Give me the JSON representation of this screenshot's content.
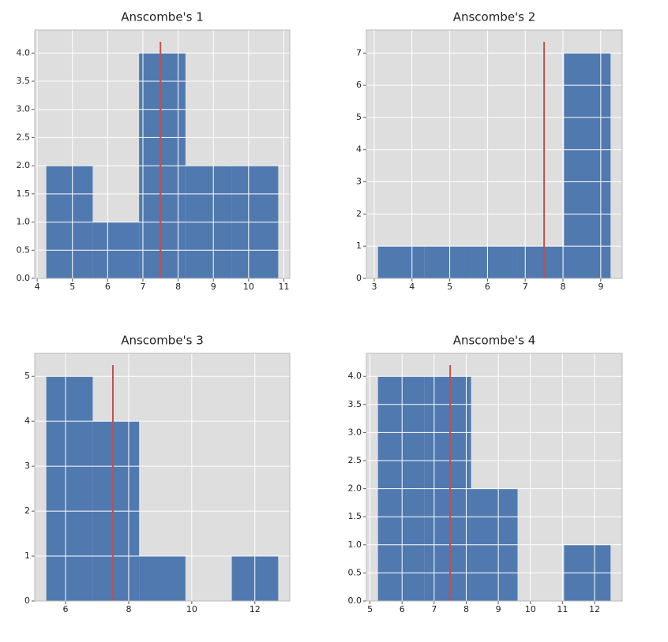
{
  "chart_data": [
    {
      "type": "histogram",
      "title": "Anscombe's 1",
      "bins": [
        4.26,
        5.576,
        6.892,
        8.208,
        9.524,
        10.84
      ],
      "values": [
        2,
        1,
        4,
        2,
        2
      ],
      "color": "#5079b0",
      "vline": {
        "x": 7.5,
        "ymax": 4.2,
        "color": "#c0504d"
      },
      "xlim": [
        3.931,
        11.169
      ],
      "ylim": [
        0,
        4.41
      ],
      "xticks": [
        4,
        5,
        6,
        7,
        8,
        9,
        10,
        11
      ],
      "yticks": [
        {
          "value": 0,
          "label": "0.0"
        },
        {
          "value": 0.5,
          "label": "0.5"
        },
        {
          "value": 1,
          "label": "1.0"
        },
        {
          "value": 1.5,
          "label": "1.5"
        },
        {
          "value": 2,
          "label": "2.0"
        },
        {
          "value": 2.5,
          "label": "2.5"
        },
        {
          "value": 3,
          "label": "3.0"
        },
        {
          "value": 3.5,
          "label": "3.5"
        },
        {
          "value": 4,
          "label": "4.0"
        }
      ],
      "grid": true
    },
    {
      "type": "histogram",
      "title": "Anscombe's 2",
      "bins": [
        3.1,
        4.332,
        5.564,
        6.796,
        8.028,
        9.26
      ],
      "values": [
        1,
        1,
        1,
        1,
        7
      ],
      "color": "#5079b0",
      "vline": {
        "x": 7.5,
        "ymax": 7.35,
        "color": "#c0504d"
      },
      "xlim": [
        2.792,
        9.568
      ],
      "ylim": [
        0,
        7.7175
      ],
      "xticks": [
        3,
        4,
        5,
        6,
        7,
        8,
        9
      ],
      "yticks": [
        0,
        1,
        2,
        3,
        4,
        5,
        6,
        7
      ],
      "grid": true
    },
    {
      "type": "histogram",
      "title": "Anscombe's 3",
      "bins": [
        5.39,
        6.86,
        8.33,
        9.8,
        11.27,
        12.74
      ],
      "values": [
        5,
        4,
        1,
        0,
        1
      ],
      "color": "#5079b0",
      "vline": {
        "x": 7.5,
        "ymax": 5.25,
        "color": "#c0504d"
      },
      "xlim": [
        5.0225,
        13.1075
      ],
      "ylim": [
        0,
        5.5125
      ],
      "xticks": [
        6,
        8,
        10,
        12
      ],
      "yticks": [
        0,
        1,
        2,
        3,
        4,
        5
      ],
      "grid": true
    },
    {
      "type": "histogram",
      "title": "Anscombe's 4",
      "bins": [
        5.25,
        6.7,
        8.15,
        9.6,
        11.05,
        12.5
      ],
      "values": [
        4,
        4,
        2,
        0,
        1
      ],
      "color": "#5079b0",
      "vline": {
        "x": 7.5,
        "ymax": 4.2,
        "color": "#c0504d"
      },
      "xlim": [
        4.8875,
        12.8625
      ],
      "ylim": [
        0,
        4.41
      ],
      "xticks": [
        5,
        6,
        7,
        8,
        9,
        10,
        11,
        12
      ],
      "yticks": [
        {
          "value": 0,
          "label": "0.0"
        },
        {
          "value": 0.5,
          "label": "0.5"
        },
        {
          "value": 1,
          "label": "1.0"
        },
        {
          "value": 1.5,
          "label": "1.5"
        },
        {
          "value": 2,
          "label": "2.0"
        },
        {
          "value": 2.5,
          "label": "2.5"
        },
        {
          "value": 3,
          "label": "3.0"
        },
        {
          "value": 3.5,
          "label": "3.5"
        },
        {
          "value": 4,
          "label": "4.0"
        }
      ],
      "grid": true
    }
  ]
}
